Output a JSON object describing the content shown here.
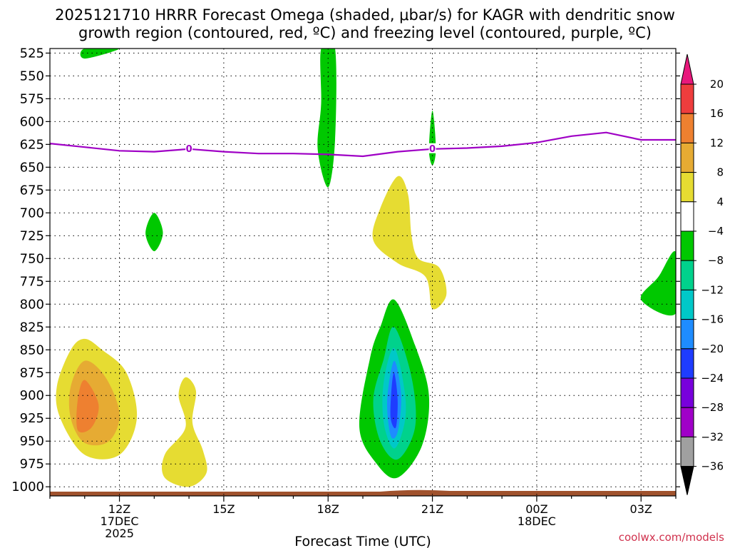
{
  "chart_data": {
    "type": "heatmap",
    "title_line1": "2025121710 HRRR Forecast Omega (shaded, μbar/s) for KAGR with dendritic snow",
    "title_line2": "growth region (contoured, red, ºC) and freezing level (contoured, purple, ºC)",
    "xlabel": "Forecast Time (UTC)",
    "x_ticks": [
      {
        "label": "12Z",
        "hour": 12,
        "sub1": "17DEC",
        "sub2": "2025"
      },
      {
        "label": "15Z",
        "hour": 15,
        "sub1": "",
        "sub2": ""
      },
      {
        "label": "18Z",
        "hour": 18,
        "sub1": "",
        "sub2": ""
      },
      {
        "label": "21Z",
        "hour": 21,
        "sub1": "",
        "sub2": ""
      },
      {
        "label": "00Z",
        "hour": 24,
        "sub1": "18DEC",
        "sub2": ""
      },
      {
        "label": "03Z",
        "hour": 27,
        "sub1": "",
        "sub2": ""
      }
    ],
    "x_range_hours": [
      10,
      28
    ],
    "y_ticks": [
      525,
      550,
      575,
      600,
      625,
      650,
      675,
      700,
      725,
      750,
      775,
      800,
      825,
      850,
      875,
      900,
      925,
      950,
      975,
      1000
    ],
    "y_range_hPa": [
      520,
      1010
    ],
    "surface_pressure_hPa": 1010,
    "colorbar": {
      "labels": [
        "20",
        "16",
        "12",
        "8",
        "4",
        "−4",
        "−8",
        "−12",
        "−16",
        "−20",
        "−24",
        "−28",
        "−32",
        "−36"
      ],
      "bins": [
        {
          "range": ">20",
          "color": "#e8187c"
        },
        {
          "range": "16 to 20",
          "color": "#ee3d3d"
        },
        {
          "range": "12 to 16",
          "color": "#ee8030"
        },
        {
          "range": "8 to 12",
          "color": "#e6ab33"
        },
        {
          "range": "4 to 8",
          "color": "#e6dc32"
        },
        {
          "range": "-4 to 4",
          "color": "#ffffff"
        },
        {
          "range": "-8 to -4",
          "color": "#00c800"
        },
        {
          "range": "-12 to -8",
          "color": "#00d28c"
        },
        {
          "range": "-16 to -12",
          "color": "#00c8c8"
        },
        {
          "range": "-20 to -16",
          "color": "#1e8cff"
        },
        {
          "range": "-24 to -20",
          "color": "#1e3cff"
        },
        {
          "range": "-28 to -24",
          "color": "#7800dc"
        },
        {
          "range": "-32 to -28",
          "color": "#a000c8"
        },
        {
          "range": "-36 to -32",
          "color": "#a0a0a0"
        },
        {
          "range": "<-36",
          "color": "#000000"
        }
      ]
    },
    "freezing_level": {
      "label": "0",
      "color": "#9f00c5",
      "points": [
        [
          10.0,
          624
        ],
        [
          11.0,
          628
        ],
        [
          12.0,
          632
        ],
        [
          13.0,
          633
        ],
        [
          14.0,
          630
        ],
        [
          15.0,
          633
        ],
        [
          16.0,
          635
        ],
        [
          17.0,
          635
        ],
        [
          18.0,
          636
        ],
        [
          19.0,
          638
        ],
        [
          20.0,
          633
        ],
        [
          21.0,
          630
        ],
        [
          22.0,
          629
        ],
        [
          23.0,
          627
        ],
        [
          24.0,
          623
        ],
        [
          25.0,
          616
        ],
        [
          26.0,
          612
        ],
        [
          27.0,
          620
        ],
        [
          28.0,
          620
        ]
      ]
    },
    "omega_regions": [
      {
        "name": "omega-up-top-left",
        "color": "#00c800",
        "points": [
          [
            11.0,
            520
          ],
          [
            12.0,
            520
          ],
          [
            11.0,
            531
          ]
        ]
      },
      {
        "name": "omega-up-spike-18z",
        "color": "#00c800",
        "points": [
          [
            17.8,
            520
          ],
          [
            18.2,
            520
          ],
          [
            18.2,
            620
          ],
          [
            18.0,
            672
          ],
          [
            17.7,
            630
          ],
          [
            17.8,
            580
          ]
        ]
      },
      {
        "name": "omega-up-spike-21z",
        "color": "#00c800",
        "points": [
          [
            21.0,
            588
          ],
          [
            21.1,
            630
          ],
          [
            21.0,
            648
          ],
          [
            20.9,
            630
          ]
        ]
      },
      {
        "name": "omega-up-small-13z",
        "color": "#00c800",
        "points": [
          [
            13.0,
            700
          ],
          [
            13.25,
            722
          ],
          [
            13.0,
            742
          ],
          [
            12.75,
            722
          ]
        ]
      },
      {
        "name": "omega-up-right-edge",
        "color": "#00c800",
        "points": [
          [
            28.0,
            743
          ],
          [
            28.0,
            810
          ],
          [
            27.0,
            795
          ],
          [
            27.5,
            770
          ]
        ]
      },
      {
        "name": "omega-up-core-outer",
        "color": "#00c800",
        "points": [
          [
            19.9,
            795
          ],
          [
            20.5,
            845
          ],
          [
            20.9,
            900
          ],
          [
            20.7,
            955
          ],
          [
            20.0,
            990
          ],
          [
            19.4,
            975
          ],
          [
            18.9,
            935
          ],
          [
            19.2,
            860
          ],
          [
            19.5,
            825
          ]
        ]
      },
      {
        "name": "omega-up-core-mid",
        "color": "#00d28c",
        "points": [
          [
            19.9,
            825
          ],
          [
            20.4,
            880
          ],
          [
            20.5,
            935
          ],
          [
            20.0,
            970
          ],
          [
            19.5,
            950
          ],
          [
            19.3,
            905
          ],
          [
            19.6,
            860
          ]
        ]
      },
      {
        "name": "omega-up-core-cyan",
        "color": "#00c8c8",
        "points": [
          [
            19.9,
            848
          ],
          [
            20.2,
            895
          ],
          [
            20.2,
            930
          ],
          [
            19.9,
            958
          ],
          [
            19.6,
            930
          ],
          [
            19.6,
            885
          ]
        ]
      },
      {
        "name": "omega-up-core-blue",
        "color": "#1e8cff",
        "points": [
          [
            19.9,
            862
          ],
          [
            20.1,
            900
          ],
          [
            20.0,
            940
          ],
          [
            19.8,
            944
          ],
          [
            19.7,
            905
          ]
        ]
      },
      {
        "name": "omega-up-core-darkblue",
        "color": "#1e3cff",
        "points": [
          [
            19.9,
            875
          ],
          [
            20.0,
            905
          ],
          [
            19.95,
            935
          ],
          [
            19.8,
            925
          ],
          [
            19.82,
            895
          ]
        ]
      },
      {
        "name": "omega-down-mid",
        "color": "#e6dc32",
        "points": [
          [
            20.0,
            660
          ],
          [
            20.3,
            680
          ],
          [
            20.4,
            725
          ],
          [
            20.6,
            750
          ],
          [
            21.2,
            760
          ],
          [
            21.4,
            790
          ],
          [
            21.0,
            805
          ],
          [
            20.8,
            770
          ],
          [
            20.0,
            755
          ],
          [
            19.3,
            730
          ],
          [
            19.5,
            695
          ]
        ]
      },
      {
        "name": "omega-down-left-outer",
        "color": "#e6dc32",
        "points": [
          [
            11.0,
            838
          ],
          [
            11.5,
            850
          ],
          [
            12.2,
            875
          ],
          [
            12.5,
            925
          ],
          [
            12.0,
            965
          ],
          [
            11.0,
            965
          ],
          [
            10.3,
            925
          ],
          [
            10.2,
            890
          ],
          [
            10.6,
            850
          ]
        ]
      },
      {
        "name": "omega-down-left-mid",
        "color": "#e6ab33",
        "points": [
          [
            11.0,
            862
          ],
          [
            11.6,
            880
          ],
          [
            12.0,
            920
          ],
          [
            11.7,
            950
          ],
          [
            11.0,
            952
          ],
          [
            10.6,
            925
          ],
          [
            10.6,
            890
          ]
        ]
      },
      {
        "name": "omega-down-left-core",
        "color": "#ee8030",
        "points": [
          [
            11.0,
            883
          ],
          [
            11.4,
            910
          ],
          [
            11.2,
            935
          ],
          [
            10.8,
            938
          ],
          [
            10.8,
            905
          ]
        ]
      },
      {
        "name": "omega-down-small-lower",
        "color": "#e6dc32",
        "points": [
          [
            13.9,
            880
          ],
          [
            14.2,
            895
          ],
          [
            14.1,
            930
          ],
          [
            14.4,
            960
          ],
          [
            14.5,
            985
          ],
          [
            14.0,
            1000
          ],
          [
            13.3,
            990
          ],
          [
            13.3,
            965
          ],
          [
            13.9,
            935
          ],
          [
            13.7,
            900
          ]
        ]
      }
    ]
  },
  "credit": "coolwx.com/models"
}
